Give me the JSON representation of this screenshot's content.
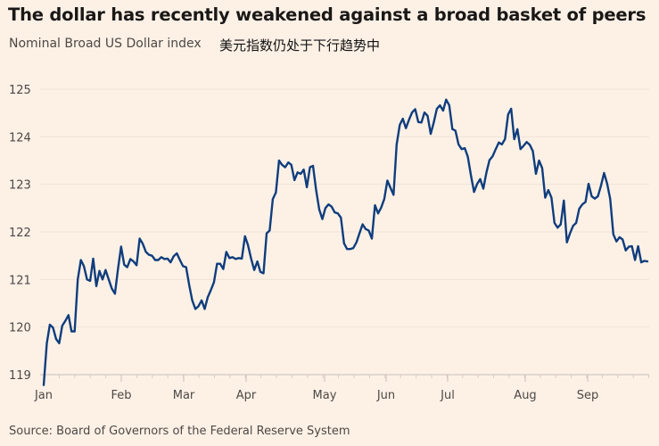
{
  "chart_data": {
    "type": "line",
    "title": "The dollar has recently weakened against a broad basket of peers",
    "subtitle": "Nominal Broad US Dollar index",
    "subtitle_translation": "美元指数仍处于下行趋势中",
    "source": "Source: Board of Governors of the Federal Reserve System",
    "ylim": [
      119,
      125
    ],
    "yticks": [
      125,
      124,
      123,
      122,
      121,
      120,
      119
    ],
    "xticks": [
      "Jan",
      "Feb",
      "Mar",
      "Apr",
      "May",
      "Jun",
      "Jul",
      "Aug",
      "Sep"
    ],
    "grid": true,
    "line_color": "#0f3d7d",
    "background_color": "#fdf1e6",
    "series": [
      {
        "values": [
          118.78,
          119.66,
          120.05,
          119.99,
          119.75,
          119.66,
          120.03,
          120.13,
          120.25,
          119.91,
          119.91,
          121.0,
          121.41,
          121.28,
          121.0,
          120.97,
          121.44,
          120.86,
          121.18,
          121.0,
          121.2,
          121.0,
          120.81,
          120.7,
          121.22,
          121.69,
          121.31,
          121.26,
          121.43,
          121.38,
          121.3,
          121.86,
          121.75,
          121.58,
          121.52,
          121.5,
          121.41,
          121.41,
          121.47,
          121.43,
          121.44,
          121.36,
          121.49,
          121.55,
          121.41,
          121.28,
          121.26,
          120.88,
          120.56,
          120.38,
          120.44,
          120.56,
          120.38,
          120.63,
          120.78,
          120.94,
          121.33,
          121.33,
          121.22,
          121.58,
          121.45,
          121.47,
          121.43,
          121.45,
          121.44,
          121.91,
          121.72,
          121.44,
          121.2,
          121.38,
          121.16,
          121.13,
          121.97,
          122.03,
          122.69,
          122.83,
          123.5,
          123.41,
          123.36,
          123.46,
          123.41,
          123.09,
          123.25,
          123.22,
          123.31,
          122.94,
          123.36,
          123.39,
          122.88,
          122.47,
          122.27,
          122.5,
          122.58,
          122.53,
          122.41,
          122.39,
          122.3,
          121.76,
          121.64,
          121.64,
          121.66,
          121.78,
          121.97,
          122.16,
          122.06,
          122.03,
          121.86,
          122.56,
          122.39,
          122.51,
          122.69,
          123.08,
          122.93,
          122.78,
          123.84,
          124.25,
          124.38,
          124.18,
          124.36,
          124.51,
          124.58,
          124.31,
          124.3,
          124.51,
          124.44,
          124.06,
          124.3,
          124.59,
          124.66,
          124.55,
          124.78,
          124.66,
          124.16,
          124.13,
          123.84,
          123.74,
          123.76,
          123.58,
          123.19,
          122.84,
          123.01,
          123.11,
          122.91,
          123.25,
          123.51,
          123.59,
          123.74,
          123.88,
          123.84,
          123.95,
          124.47,
          124.59,
          123.95,
          124.16,
          123.74,
          123.81,
          123.89,
          123.83,
          123.7,
          123.22,
          123.5,
          123.34,
          122.72,
          122.88,
          122.72,
          122.19,
          122.09,
          122.16,
          122.66,
          121.78,
          121.97,
          122.13,
          122.19,
          122.49,
          122.58,
          122.63,
          123.01,
          122.75,
          122.7,
          122.75,
          122.97,
          123.24,
          123.01,
          122.69,
          121.95,
          121.8,
          121.89,
          121.84,
          121.61,
          121.69,
          121.7,
          121.41,
          121.7,
          121.36,
          121.39,
          121.38
        ]
      }
    ]
  }
}
